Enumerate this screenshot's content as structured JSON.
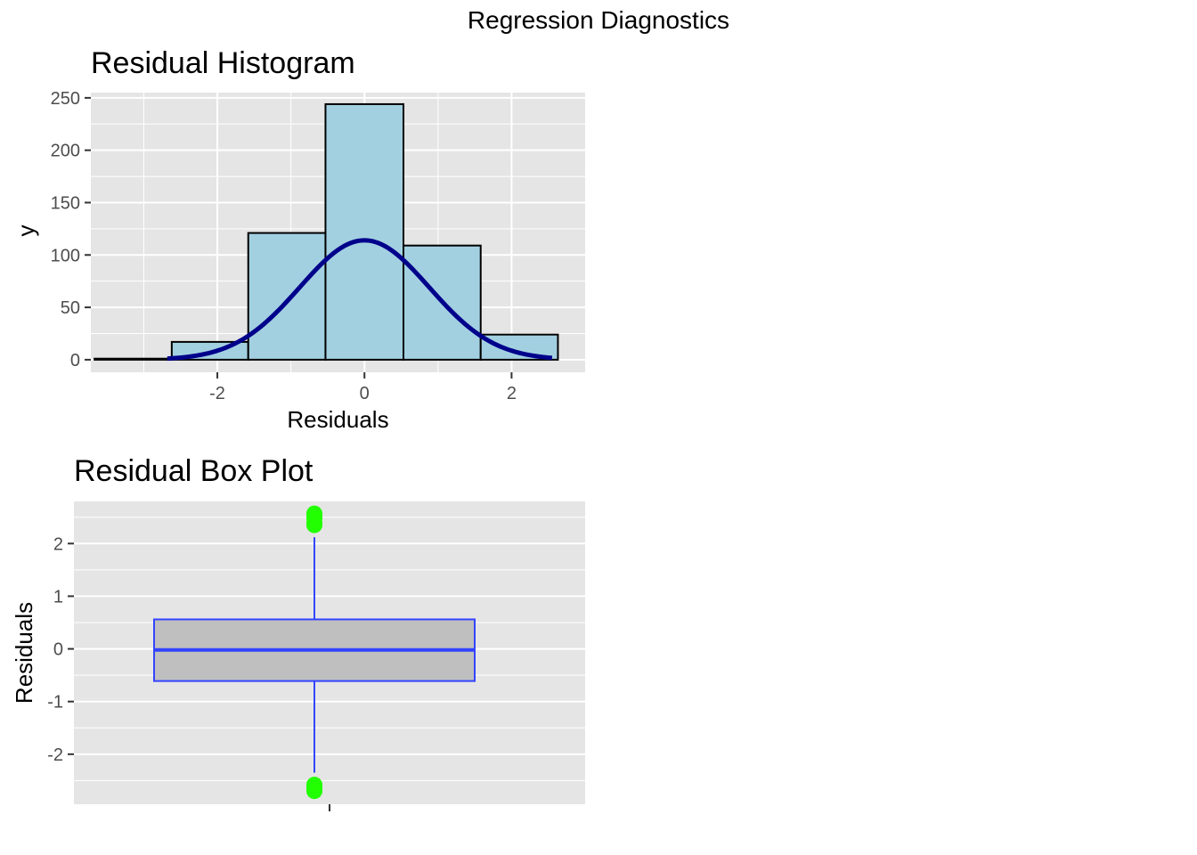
{
  "figure": {
    "title": "Regression Diagnostics"
  },
  "chart_data": [
    {
      "id": "histogram",
      "type": "bar",
      "title": "Residual Histogram",
      "xlabel": "Residuals",
      "ylabel": "y",
      "xlim": [
        -3.72,
        3.0
      ],
      "ylim": [
        -12,
        255
      ],
      "x_ticks": [
        -2,
        0,
        2
      ],
      "y_ticks": [
        0,
        50,
        100,
        150,
        200,
        250
      ],
      "grid": true,
      "bins": [
        {
          "x0": -3.67,
          "x1": -2.62,
          "count": 1
        },
        {
          "x0": -2.62,
          "x1": -1.58,
          "count": 17
        },
        {
          "x0": -1.58,
          "x1": -0.53,
          "count": 121
        },
        {
          "x0": -0.53,
          "x1": 0.53,
          "count": 244
        },
        {
          "x0": 0.53,
          "x1": 1.58,
          "count": 109
        },
        {
          "x0": 1.58,
          "x1": 2.63,
          "count": 24
        }
      ],
      "density_curve": {
        "mean": 0.0,
        "sd": 0.88,
        "peak": 114,
        "from": -2.68,
        "to": 2.55
      },
      "colors": {
        "fill": "#a2d0e1",
        "outline": "#000000",
        "curve": "#00008b",
        "panel": "#e5e5e5",
        "grid": "#ffffff"
      }
    },
    {
      "id": "boxplot",
      "type": "box",
      "title": "Residual Box Plot",
      "xlabel": "",
      "ylabel": "Residuals",
      "ylim": [
        -2.95,
        2.8
      ],
      "y_ticks": [
        -2,
        -1,
        0,
        1,
        2
      ],
      "grid": true,
      "box": {
        "q1": -0.61,
        "median": -0.02,
        "q3": 0.56,
        "whisker_low": -2.35,
        "whisker_high": 2.12
      },
      "outliers": [
        2.35,
        2.4,
        2.48,
        2.52,
        2.57,
        -2.58,
        -2.62,
        -2.66,
        -2.7
      ],
      "colors": {
        "box_fill": "#bfbfbf",
        "box_line": "#3344ff",
        "outlier": "#22ff00",
        "panel": "#e5e5e5",
        "grid": "#ffffff"
      }
    }
  ]
}
